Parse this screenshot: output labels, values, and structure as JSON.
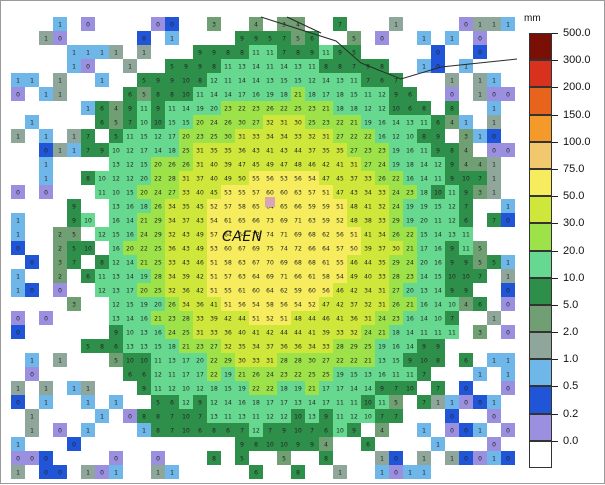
{
  "map": {
    "city_label": "CAEN",
    "cells_note": ""
  },
  "colorbar": {
    "unit": "mm",
    "levels": [
      "500.0",
      "300.0",
      "200.0",
      "150.0",
      "100.0",
      "75.0",
      "50.0",
      "30.0",
      "20.0",
      "10.0",
      "5.0",
      "2.0",
      "1.0",
      "0.5",
      "0.2",
      "0.0"
    ],
    "colors": [
      "#7a0f06",
      "#d8321e",
      "#e8641c",
      "#f39a2a",
      "#f2c86e",
      "#f6ec5e",
      "#cfe63a",
      "#9ee24a",
      "#66d890",
      "#2e8f4b",
      "#6f9f72",
      "#8fa69a",
      "#6fb6e9",
      "#1f55d6",
      "#9b8fe0",
      "#ffffff"
    ]
  }
}
